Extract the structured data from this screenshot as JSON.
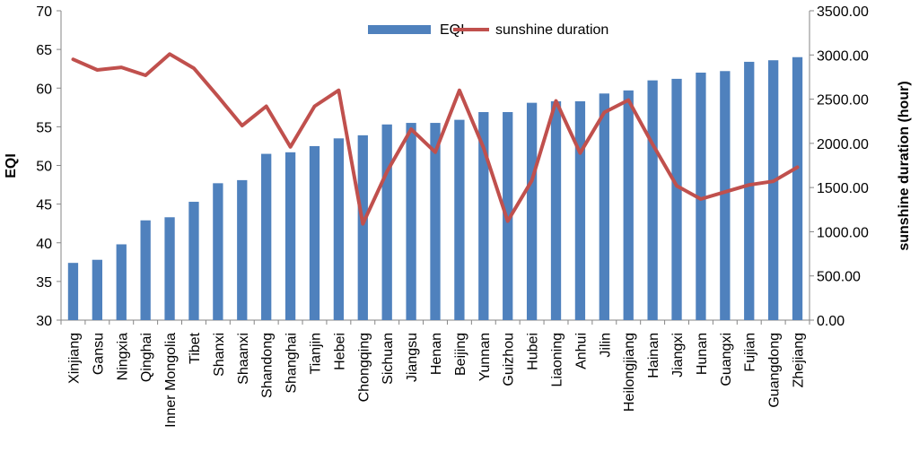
{
  "chart_data": {
    "type": "bar",
    "categories": [
      "Xinjiang",
      "Gansu",
      "Ningxia",
      "Qinghai",
      "Inner Mongolia",
      "Tibet",
      "Shanxi",
      "Shaanxi",
      "Shandong",
      "Shanghai",
      "Tianjin",
      "Hebei",
      "Chongqing",
      "Sichuan",
      "Jiangsu",
      "Henan",
      "Beijing",
      "Yunnan",
      "Guizhou",
      "Hubei",
      "Liaoning",
      "Anhui",
      "Jilin",
      "Heilongjiang",
      "Hainan",
      "Jiangxi",
      "Hunan",
      "Guangxi",
      "Fujian",
      "Guangdong",
      "Zhejiang"
    ],
    "series": [
      {
        "name": "EQI",
        "type": "bar",
        "axis": "left",
        "color": "#4F81BD",
        "values": [
          37.4,
          37.8,
          39.8,
          42.9,
          43.3,
          45.3,
          47.7,
          48.1,
          51.5,
          51.7,
          52.5,
          53.5,
          53.9,
          55.3,
          55.5,
          55.5,
          55.9,
          56.9,
          56.9,
          58.1,
          58.3,
          58.3,
          59.3,
          59.7,
          61.0,
          61.2,
          62.0,
          62.2,
          63.4,
          63.6,
          64.0
        ]
      },
      {
        "name": "sunshine duration",
        "type": "line",
        "axis": "right",
        "color": "#C0504D",
        "values": [
          2950,
          2830,
          2860,
          2770,
          3010,
          2850,
          2530,
          2200,
          2420,
          1960,
          2420,
          2600,
          1090,
          1680,
          2160,
          1900,
          2600,
          1950,
          1120,
          1580,
          2480,
          1890,
          2350,
          2490,
          1990,
          1520,
          1370,
          1450,
          1530,
          1570,
          1730
        ]
      }
    ],
    "ylabel": "EQI",
    "ylabel_right": "sunshine duration (hour)",
    "ylim": [
      30,
      70
    ],
    "yticks": [
      "30",
      "35",
      "40",
      "45",
      "50",
      "55",
      "60",
      "65",
      "70"
    ],
    "ylim_right": [
      0,
      3500
    ],
    "yticks_right": [
      "0.00",
      "500.00",
      "1000.00",
      "1500.00",
      "2000.00",
      "2500.00",
      "3000.00",
      "3500.00"
    ],
    "legend": {
      "placement": "top-center",
      "entries": [
        "EQI",
        "sunshine duration"
      ]
    },
    "grid": false
  }
}
